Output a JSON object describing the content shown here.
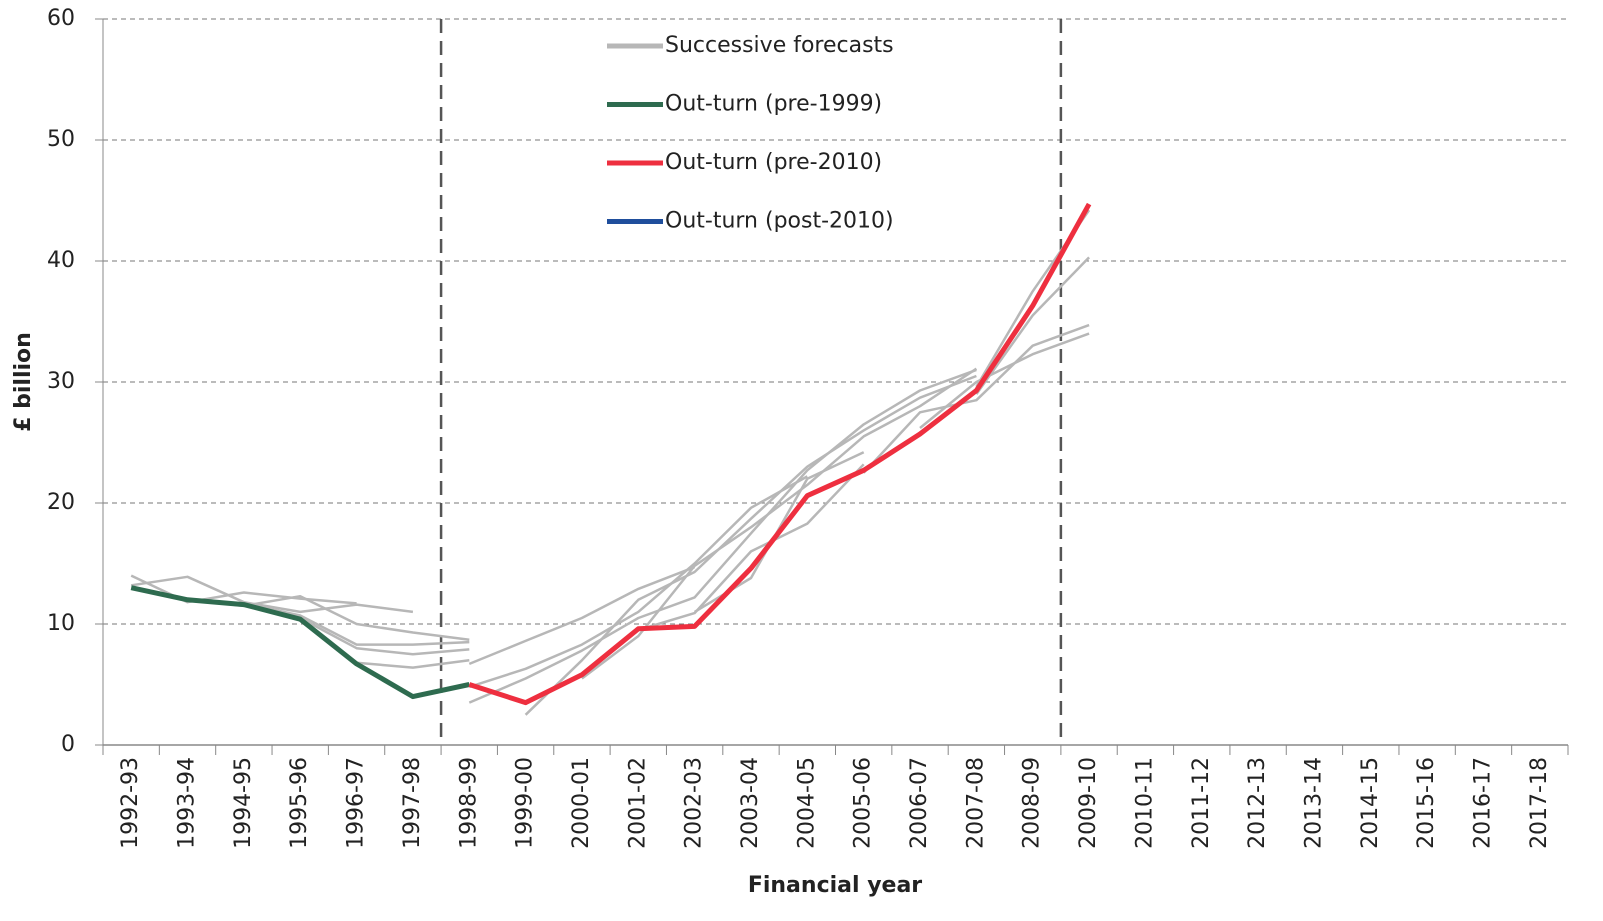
{
  "chart_data": {
    "type": "line",
    "x_label": "Financial year",
    "y_label": "£ billion",
    "categories": [
      "1992-93",
      "1993-94",
      "1994-95",
      "1995-96",
      "1996-97",
      "1997-98",
      "1998-99",
      "1999-00",
      "2000-01",
      "2001-02",
      "2002-03",
      "2003-04",
      "2004-05",
      "2005-06",
      "2006-07",
      "2007-08",
      "2008-09",
      "2009-10",
      "2010-11",
      "2011-12",
      "2012-13",
      "2013-14",
      "2014-15",
      "2015-16",
      "2016-17",
      "2017-18"
    ],
    "ylim": [
      0,
      60
    ],
    "yticks": [
      0,
      10,
      20,
      30,
      40,
      50,
      60
    ],
    "grid": true,
    "vlines": [
      "1998-99",
      "2009-10"
    ],
    "legend": "top-center",
    "forecasts": {
      "name": "Successive forecasts",
      "color": "#b7b7b7",
      "lines": [
        [
          14,
          11.8,
          12.6,
          12.1,
          11.7,
          null,
          null,
          null,
          null,
          null,
          null,
          null,
          null,
          null,
          null,
          null,
          null,
          null,
          null,
          null,
          null,
          null,
          null,
          null,
          null,
          null
        ],
        [
          13.2,
          13.9,
          11.8,
          11,
          11.6,
          11,
          null,
          null,
          null,
          null,
          null,
          null,
          null,
          null,
          null,
          null,
          null,
          null,
          null,
          null,
          null,
          null,
          null,
          null,
          null,
          null
        ],
        [
          null,
          12,
          11.5,
          12.3,
          10,
          9.3,
          8.7,
          null,
          null,
          null,
          null,
          null,
          null,
          null,
          null,
          null,
          null,
          null,
          null,
          null,
          null,
          null,
          null,
          null,
          null,
          null
        ],
        [
          null,
          null,
          11.7,
          10.7,
          8.3,
          8.3,
          8.5,
          null,
          null,
          null,
          null,
          null,
          null,
          null,
          null,
          null,
          null,
          null,
          null,
          null,
          null,
          null,
          null,
          null,
          null,
          null
        ],
        [
          null,
          null,
          null,
          10.5,
          8,
          7.5,
          7.9,
          null,
          null,
          null,
          null,
          null,
          null,
          null,
          null,
          null,
          null,
          null,
          null,
          null,
          null,
          null,
          null,
          null,
          null,
          null
        ],
        [
          null,
          null,
          null,
          null,
          6.8,
          6.4,
          7,
          null,
          null,
          null,
          null,
          null,
          null,
          null,
          null,
          null,
          null,
          null,
          null,
          null,
          null,
          null,
          null,
          null,
          null,
          null
        ],
        [
          null,
          null,
          null,
          null,
          null,
          null,
          6.7,
          8.6,
          10.5,
          12.9,
          14.7,
          null,
          null,
          null,
          null,
          null,
          null,
          null,
          null,
          null,
          null,
          null,
          null,
          null,
          null,
          null
        ],
        [
          null,
          null,
          null,
          null,
          null,
          null,
          4.8,
          6.3,
          8.3,
          11,
          15,
          19.6,
          22.2,
          null,
          null,
          null,
          null,
          null,
          null,
          null,
          null,
          null,
          null,
          null,
          null,
          null
        ],
        [
          null,
          null,
          null,
          null,
          null,
          null,
          3.5,
          5.5,
          7.8,
          10.5,
          12.2,
          17.5,
          22.7,
          26.5,
          29.3,
          31,
          null,
          null,
          null,
          null,
          null,
          null,
          null,
          null,
          null,
          null
        ],
        [
          null,
          null,
          null,
          null,
          null,
          null,
          null,
          2.5,
          7,
          12,
          14.3,
          18.7,
          23,
          26,
          28.7,
          30.5,
          null,
          null,
          null,
          null,
          null,
          null,
          null,
          null,
          null,
          null
        ],
        [
          null,
          null,
          null,
          null,
          null,
          null,
          null,
          null,
          5.5,
          9,
          14.8,
          18,
          21.5,
          25.5,
          28,
          31.1,
          null,
          null,
          null,
          null,
          null,
          null,
          null,
          null,
          null,
          null
        ],
        [
          null,
          null,
          null,
          null,
          null,
          null,
          null,
          null,
          null,
          9.5,
          10.9,
          16,
          18.3,
          23.2,
          null,
          null,
          null,
          null,
          null,
          null,
          null,
          null,
          null,
          null,
          null,
          null
        ],
        [
          null,
          null,
          null,
          null,
          null,
          null,
          null,
          null,
          null,
          null,
          11,
          13.8,
          22,
          24.2,
          null,
          null,
          null,
          null,
          null,
          null,
          null,
          null,
          null,
          null,
          null,
          null
        ],
        [
          null,
          null,
          null,
          null,
          null,
          null,
          null,
          null,
          null,
          null,
          null,
          null,
          null,
          22.5,
          27.5,
          28.5,
          33,
          34.7,
          null,
          null,
          null,
          null,
          null,
          null,
          null,
          null
        ],
        [
          null,
          null,
          null,
          null,
          null,
          null,
          null,
          null,
          null,
          null,
          null,
          null,
          null,
          null,
          26.2,
          30,
          32.3,
          34,
          null,
          null,
          null,
          null,
          null,
          null,
          null,
          null
        ],
        [
          null,
          null,
          null,
          null,
          null,
          null,
          null,
          null,
          null,
          null,
          null,
          null,
          null,
          null,
          null,
          29.6,
          37.5,
          44.2,
          null,
          null,
          null,
          null,
          null,
          null,
          null,
          null
        ],
        [
          null,
          null,
          null,
          null,
          null,
          null,
          null,
          null,
          null,
          null,
          null,
          null,
          null,
          null,
          null,
          29,
          35.5,
          40.3,
          null,
          null,
          null,
          null,
          null,
          null,
          null,
          null
        ]
      ]
    },
    "series": [
      {
        "name": "Out-turn (pre-1999)",
        "color": "#2e6b4f",
        "values": [
          13,
          12,
          11.6,
          10.4,
          6.7,
          4,
          5,
          null,
          null,
          null,
          null,
          null,
          null,
          null,
          null,
          null,
          null,
          null,
          null,
          null,
          null,
          null,
          null,
          null,
          null,
          null
        ]
      },
      {
        "name": "Out-turn (pre-2010)",
        "color": "#ee2f3f",
        "values": [
          null,
          null,
          null,
          null,
          null,
          null,
          5,
          3.5,
          5.8,
          9.6,
          9.8,
          14.6,
          20.6,
          22.7,
          25.7,
          29.3,
          36.3,
          44.7,
          null,
          null,
          null,
          null,
          null,
          null,
          null,
          null
        ]
      },
      {
        "name": "Out-turn (post-2010)",
        "color": "#1f4e9c",
        "values": [
          null,
          null,
          null,
          null,
          null,
          null,
          null,
          null,
          null,
          null,
          null,
          null,
          null,
          null,
          null,
          null,
          null,
          null,
          null,
          null,
          null,
          null,
          null,
          null,
          null,
          null
        ]
      }
    ]
  }
}
